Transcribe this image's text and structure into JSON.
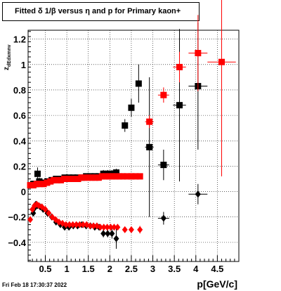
{
  "title": "Fitted δ 1/β versus η and p for Primary kaon+",
  "timestamp": "Fri Feb 18 17:30:37 2022",
  "chart_data": {
    "type": "scatter",
    "title": "Fitted δ 1/β versus η and p for Primary kaon+",
    "xlabel": "p[GeV/c]",
    "ylabel": "z",
    "ylabel_subscript": "dEdxmnv",
    "xlim": [
      0.1,
      5.0
    ],
    "ylim": [
      -0.55,
      1.27
    ],
    "x_ticks": [
      0.5,
      1,
      1.5,
      2,
      2.5,
      3,
      3.5,
      4,
      4.5
    ],
    "x_tick_labels": [
      "0.5",
      "1",
      "1.5",
      "2",
      "2.5",
      "3",
      "3.5",
      "4",
      "4.5"
    ],
    "y_ticks": [
      -0.4,
      -0.2,
      0,
      0.2,
      0.4,
      0.6,
      0.8,
      1,
      1.2
    ],
    "y_tick_labels": [
      "−0.4",
      "−0.2",
      "0",
      "0.2",
      "0.4",
      "0.6",
      "0.8",
      "1",
      "1.2"
    ],
    "grid": true,
    "series": [
      {
        "marker": "square",
        "color": "#000000",
        "points": [
          {
            "x": 0.22,
            "y": 0.06,
            "ey": 0.02
          },
          {
            "x": 0.25,
            "y": 0.06,
            "ey": 0.02
          },
          {
            "x": 0.28,
            "y": 0.06,
            "ey": 0.02
          },
          {
            "x": 0.32,
            "y": 0.14,
            "ey": 0.05
          },
          {
            "x": 0.36,
            "y": 0.08,
            "ey": 0.03
          },
          {
            "x": 0.45,
            "y": 0.07,
            "ey": 0.02
          },
          {
            "x": 0.55,
            "y": 0.08,
            "ey": 0.02
          },
          {
            "x": 0.65,
            "y": 0.09,
            "ey": 0.02
          },
          {
            "x": 0.75,
            "y": 0.1,
            "ey": 0.02
          },
          {
            "x": 0.85,
            "y": 0.1,
            "ey": 0.02
          },
          {
            "x": 0.95,
            "y": 0.11,
            "ey": 0.02
          },
          {
            "x": 1.05,
            "y": 0.11,
            "ey": 0.02
          },
          {
            "x": 1.15,
            "y": 0.11,
            "ey": 0.02
          },
          {
            "x": 1.25,
            "y": 0.11,
            "ey": 0.02
          },
          {
            "x": 1.35,
            "y": 0.11,
            "ey": 0.02
          },
          {
            "x": 1.45,
            "y": 0.12,
            "ey": 0.02
          },
          {
            "x": 1.55,
            "y": 0.12,
            "ey": 0.02
          },
          {
            "x": 1.65,
            "y": 0.12,
            "ey": 0.02
          },
          {
            "x": 1.75,
            "y": 0.12,
            "ey": 0.02
          },
          {
            "x": 1.85,
            "y": 0.14,
            "ey": 0.03
          },
          {
            "x": 1.95,
            "y": 0.14,
            "ey": 0.03
          },
          {
            "x": 2.05,
            "y": 0.14,
            "ey": 0.03
          },
          {
            "x": 2.15,
            "y": 0.15,
            "ey": 0.03
          },
          {
            "x": 2.35,
            "y": 0.52,
            "ey": 0.05
          },
          {
            "x": 2.5,
            "y": 0.66,
            "ey": 0.07
          },
          {
            "x": 2.67,
            "y": 0.85,
            "ey": 0.15
          },
          {
            "x": 2.92,
            "y": 0.35,
            "ex": 0.1,
            "ey": 0.55
          },
          {
            "x": 3.25,
            "y": 0.21,
            "ex": 0.13,
            "ey": 0.12
          },
          {
            "x": 3.62,
            "y": 0.68,
            "ex": 0.15,
            "ey": 0.6
          },
          {
            "x": 4.05,
            "y": 0.83,
            "ex": 0.22,
            "ey": 0.5
          }
        ]
      },
      {
        "marker": "square",
        "color": "#ff0000",
        "points": [
          {
            "x": 0.15,
            "y": 0.05,
            "ey": 0.02
          },
          {
            "x": 0.22,
            "y": 0.05,
            "ey": 0.02
          },
          {
            "x": 0.3,
            "y": 0.06,
            "ey": 0.02
          },
          {
            "x": 0.38,
            "y": 0.06,
            "ey": 0.02
          },
          {
            "x": 0.46,
            "y": 0.06,
            "ey": 0.02
          },
          {
            "x": 0.54,
            "y": 0.07,
            "ey": 0.02
          },
          {
            "x": 0.62,
            "y": 0.08,
            "ey": 0.02
          },
          {
            "x": 0.7,
            "y": 0.09,
            "ey": 0.02
          },
          {
            "x": 0.78,
            "y": 0.09,
            "ey": 0.02
          },
          {
            "x": 0.86,
            "y": 0.09,
            "ey": 0.02
          },
          {
            "x": 0.94,
            "y": 0.1,
            "ey": 0.02
          },
          {
            "x": 1.02,
            "y": 0.1,
            "ey": 0.02
          },
          {
            "x": 1.1,
            "y": 0.1,
            "ey": 0.02
          },
          {
            "x": 1.18,
            "y": 0.1,
            "ey": 0.02
          },
          {
            "x": 1.26,
            "y": 0.1,
            "ey": 0.02
          },
          {
            "x": 1.34,
            "y": 0.11,
            "ey": 0.02
          },
          {
            "x": 1.42,
            "y": 0.11,
            "ey": 0.02
          },
          {
            "x": 1.5,
            "y": 0.11,
            "ey": 0.02
          },
          {
            "x": 1.58,
            "y": 0.11,
            "ey": 0.02
          },
          {
            "x": 1.66,
            "y": 0.11,
            "ey": 0.02
          },
          {
            "x": 1.74,
            "y": 0.11,
            "ey": 0.02
          },
          {
            "x": 1.82,
            "y": 0.12,
            "ey": 0.02
          },
          {
            "x": 1.9,
            "y": 0.12,
            "ey": 0.02
          },
          {
            "x": 1.98,
            "y": 0.12,
            "ey": 0.02
          },
          {
            "x": 2.06,
            "y": 0.12,
            "ey": 0.02
          },
          {
            "x": 2.14,
            "y": 0.12,
            "ey": 0.02
          },
          {
            "x": 2.22,
            "y": 0.12,
            "ey": 0.02
          },
          {
            "x": 2.3,
            "y": 0.12,
            "ey": 0.02
          },
          {
            "x": 2.4,
            "y": 0.12,
            "ey": 0.02
          },
          {
            "x": 2.5,
            "y": 0.12,
            "ey": 0.02
          },
          {
            "x": 2.6,
            "y": 0.12,
            "ey": 0.02
          },
          {
            "x": 2.7,
            "y": 0.12,
            "ey": 0.02
          },
          {
            "x": 2.92,
            "y": 0.55,
            "ex": 0.1,
            "ey": 0.05
          },
          {
            "x": 3.25,
            "y": 0.76,
            "ex": 0.13,
            "ey": 0.06
          },
          {
            "x": 3.62,
            "y": 0.98,
            "ex": 0.15,
            "ey": 0.12
          },
          {
            "x": 4.05,
            "y": 1.09,
            "ex": 0.22,
            "ey": 0.3
          },
          {
            "x": 4.6,
            "y": 1.02,
            "ex": 0.33,
            "ey": 0.9
          }
        ]
      },
      {
        "marker": "diamond",
        "color": "#000000",
        "points": [
          {
            "x": 0.22,
            "y": -0.17,
            "ey": 0.02
          },
          {
            "x": 0.25,
            "y": -0.13,
            "ey": 0.02
          },
          {
            "x": 0.28,
            "y": -0.1,
            "ey": 0.02
          },
          {
            "x": 0.32,
            "y": -0.11,
            "ey": 0.02
          },
          {
            "x": 0.38,
            "y": -0.12,
            "ey": 0.02
          },
          {
            "x": 0.45,
            "y": -0.14,
            "ey": 0.02
          },
          {
            "x": 0.55,
            "y": -0.17,
            "ey": 0.02
          },
          {
            "x": 0.65,
            "y": -0.2,
            "ey": 0.02
          },
          {
            "x": 0.75,
            "y": -0.24,
            "ey": 0.02
          },
          {
            "x": 0.85,
            "y": -0.26,
            "ey": 0.02
          },
          {
            "x": 0.95,
            "y": -0.28,
            "ey": 0.02
          },
          {
            "x": 1.05,
            "y": -0.28,
            "ey": 0.02
          },
          {
            "x": 1.15,
            "y": -0.27,
            "ey": 0.02
          },
          {
            "x": 1.25,
            "y": -0.27,
            "ey": 0.02
          },
          {
            "x": 1.35,
            "y": -0.26,
            "ey": 0.02
          },
          {
            "x": 1.45,
            "y": -0.27,
            "ey": 0.02
          },
          {
            "x": 1.55,
            "y": -0.27,
            "ey": 0.02
          },
          {
            "x": 1.65,
            "y": -0.28,
            "ey": 0.02
          },
          {
            "x": 1.75,
            "y": -0.28,
            "ey": 0.02
          },
          {
            "x": 1.85,
            "y": -0.33,
            "ey": 0.03
          },
          {
            "x": 1.95,
            "y": -0.33,
            "ey": 0.03
          },
          {
            "x": 2.05,
            "y": -0.33,
            "ey": 0.04
          },
          {
            "x": 2.15,
            "y": -0.37,
            "ey": 0.08
          },
          {
            "x": 3.25,
            "y": -0.21,
            "ex": 0.13,
            "ey": 0.05
          },
          {
            "x": 4.05,
            "y": -0.02,
            "ex": 0.22,
            "ey": 0.08
          }
        ]
      },
      {
        "marker": "diamond",
        "color": "#ff0000",
        "points": [
          {
            "x": 0.15,
            "y": -0.22,
            "ey": 0.02
          },
          {
            "x": 0.2,
            "y": -0.14,
            "ey": 0.02
          },
          {
            "x": 0.25,
            "y": -0.11,
            "ey": 0.02
          },
          {
            "x": 0.3,
            "y": -0.1,
            "ey": 0.02
          },
          {
            "x": 0.35,
            "y": -0.11,
            "ey": 0.02
          },
          {
            "x": 0.42,
            "y": -0.12,
            "ey": 0.02
          },
          {
            "x": 0.5,
            "y": -0.14,
            "ey": 0.02
          },
          {
            "x": 0.58,
            "y": -0.17,
            "ey": 0.02
          },
          {
            "x": 0.66,
            "y": -0.2,
            "ey": 0.02
          },
          {
            "x": 0.74,
            "y": -0.22,
            "ey": 0.02
          },
          {
            "x": 0.82,
            "y": -0.24,
            "ey": 0.02
          },
          {
            "x": 0.9,
            "y": -0.25,
            "ey": 0.02
          },
          {
            "x": 0.98,
            "y": -0.26,
            "ey": 0.02
          },
          {
            "x": 1.06,
            "y": -0.26,
            "ey": 0.02
          },
          {
            "x": 1.14,
            "y": -0.26,
            "ey": 0.02
          },
          {
            "x": 1.22,
            "y": -0.26,
            "ey": 0.02
          },
          {
            "x": 1.3,
            "y": -0.26,
            "ey": 0.02
          },
          {
            "x": 1.38,
            "y": -0.26,
            "ey": 0.02
          },
          {
            "x": 1.46,
            "y": -0.26,
            "ey": 0.02
          },
          {
            "x": 1.54,
            "y": -0.27,
            "ey": 0.02
          },
          {
            "x": 1.62,
            "y": -0.27,
            "ey": 0.02
          },
          {
            "x": 1.7,
            "y": -0.27,
            "ey": 0.02
          },
          {
            "x": 1.78,
            "y": -0.28,
            "ey": 0.02
          },
          {
            "x": 1.86,
            "y": -0.28,
            "ey": 0.02
          },
          {
            "x": 1.94,
            "y": -0.28,
            "ey": 0.02
          },
          {
            "x": 2.02,
            "y": -0.28,
            "ey": 0.02
          },
          {
            "x": 2.1,
            "y": -0.28,
            "ey": 0.02
          },
          {
            "x": 2.18,
            "y": -0.28,
            "ey": 0.02
          },
          {
            "x": 2.35,
            "y": -0.3,
            "ey": 0.02
          },
          {
            "x": 2.5,
            "y": -0.3,
            "ey": 0.02
          },
          {
            "x": 2.7,
            "y": -0.3,
            "ey": 0.03
          }
        ]
      }
    ]
  }
}
